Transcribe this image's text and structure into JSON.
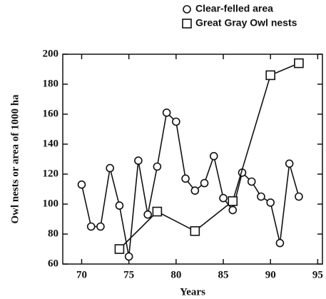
{
  "chart_data": {
    "type": "line",
    "xlabel": "Years",
    "ylabel": "Owl nests or area of 1000 ha",
    "xlim": [
      68,
      95.5
    ],
    "ylim": [
      60,
      200
    ],
    "xticks": [
      70,
      75,
      80,
      85,
      90,
      95
    ],
    "yticks": [
      60,
      80,
      100,
      120,
      140,
      160,
      180,
      200
    ],
    "legend": "top-right",
    "series": [
      {
        "name": "Clear-felled area",
        "color": "#111111",
        "marker": "circle",
        "x": [
          70,
          71,
          72,
          73,
          74,
          75,
          76,
          77,
          78,
          79,
          80,
          81,
          82,
          83,
          84,
          85,
          86,
          87,
          88,
          89,
          90,
          91,
          92,
          93
        ],
        "values": [
          113,
          85,
          85,
          124,
          99,
          65,
          129,
          93,
          125,
          161,
          155,
          117,
          109,
          114,
          132,
          104,
          96,
          121,
          115,
          105,
          101,
          74,
          127,
          105
        ]
      },
      {
        "name": "Great Gray Owl nests",
        "color": "#111111",
        "marker": "square",
        "x": [
          74,
          78,
          82,
          86,
          90,
          93
        ],
        "values": [
          70,
          95,
          82,
          102,
          186,
          194
        ]
      }
    ]
  }
}
